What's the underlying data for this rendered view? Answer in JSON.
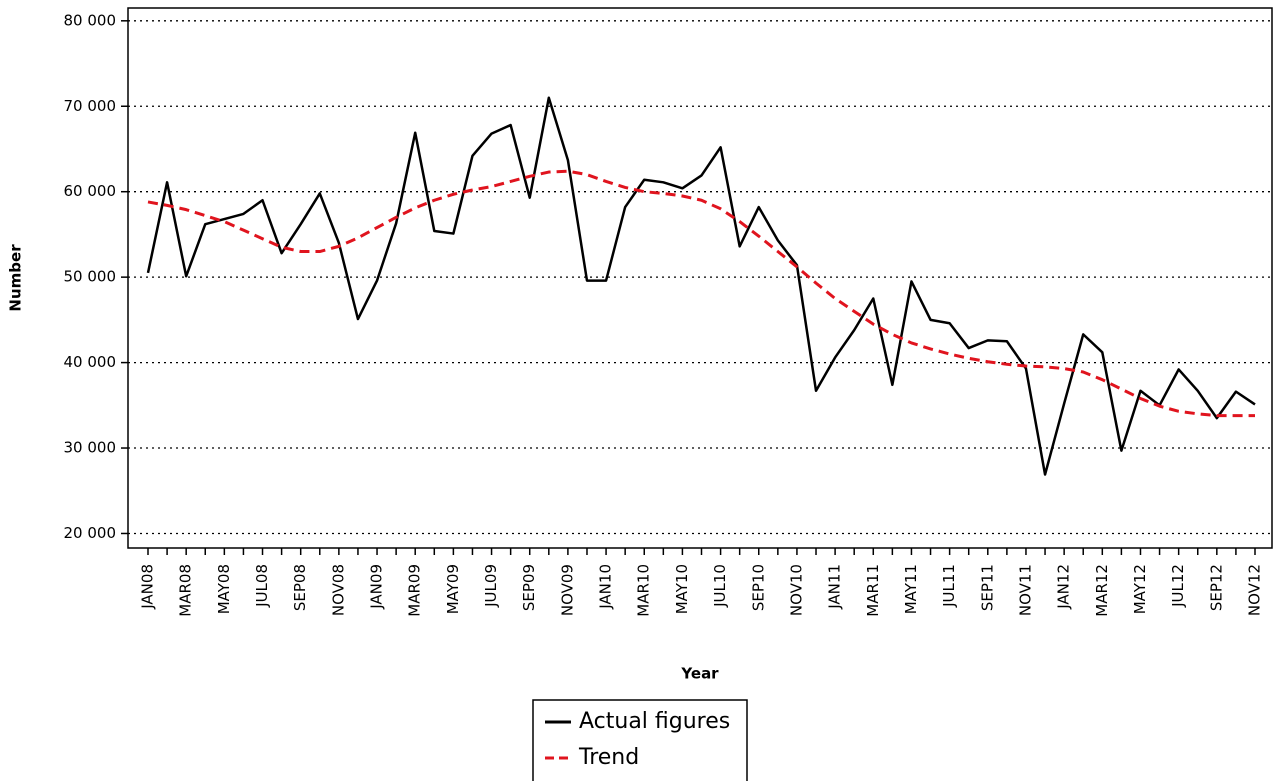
{
  "chart_data": {
    "type": "line",
    "x_label": "Year",
    "y_label": "Number",
    "categories": [
      "JAN08",
      null,
      "MAR08",
      null,
      "MAY08",
      null,
      "JUL08",
      null,
      "SEP08",
      null,
      "NOV08",
      null,
      "JAN09",
      null,
      "MAR09",
      null,
      "MAY09",
      null,
      "JUL09",
      null,
      "SEP09",
      null,
      "NOV09",
      null,
      "JAN10",
      null,
      "MAR10",
      null,
      "MAY10",
      null,
      "JUL10",
      null,
      "SEP10",
      null,
      "NOV10",
      null,
      "JAN11",
      null,
      "MAR11",
      null,
      "MAY11",
      null,
      "JUL11",
      null,
      "SEP11",
      null,
      "NOV11",
      null,
      "JAN12",
      null,
      "MAR12",
      null,
      "MAY12",
      null,
      "JUL12",
      null,
      "SEP12",
      null,
      "NOV12"
    ],
    "series": [
      {
        "name": "Actual figures",
        "color": "#000000",
        "style": "solid",
        "values": [
          50500,
          61100,
          50100,
          56200,
          56800,
          57400,
          59000,
          52800,
          56200,
          59800,
          54000,
          45100,
          49600,
          56300,
          66900,
          55400,
          55100,
          64200,
          66800,
          67800,
          59300,
          71000,
          63700,
          49600,
          49600,
          58200,
          61400,
          61100,
          60400,
          61900,
          65200,
          53600,
          58200,
          54300,
          51400,
          36700,
          40600,
          43800,
          47500,
          37400,
          49500,
          45000,
          44600,
          41700,
          42600,
          42500,
          39300,
          26900,
          35200,
          43300,
          41200,
          29700,
          36700,
          35000,
          39200,
          36700,
          33500,
          36600,
          35100
        ]
      },
      {
        "name": "Trend",
        "color": "#e0141e",
        "style": "dashed",
        "values": [
          58800,
          58400,
          57900,
          57200,
          56500,
          55500,
          54500,
          53500,
          53000,
          53000,
          53600,
          54600,
          55800,
          57000,
          58100,
          59000,
          59700,
          60200,
          60600,
          61200,
          61800,
          62300,
          62400,
          62000,
          61200,
          60500,
          60000,
          59800,
          59500,
          59000,
          58000,
          56500,
          54800,
          53000,
          51200,
          49300,
          47500,
          46000,
          44500,
          43300,
          42300,
          41600,
          41000,
          40500,
          40100,
          39800,
          39600,
          39500,
          39300,
          38900,
          38000,
          36900,
          35800,
          34900,
          34300,
          34000,
          33800,
          33800,
          33800
        ]
      }
    ],
    "ylim": [
      18300,
      81500
    ],
    "yticks": [
      {
        "value": 20000,
        "label": "20 000"
      },
      {
        "value": 30000,
        "label": "30 000"
      },
      {
        "value": 40000,
        "label": "40 000"
      },
      {
        "value": 50000,
        "label": "50 000"
      },
      {
        "value": 60000,
        "label": "60 000"
      },
      {
        "value": 70000,
        "label": "70 000"
      },
      {
        "value": 80000,
        "label": "80 000"
      }
    ],
    "grid": true,
    "legend": "bottom"
  }
}
